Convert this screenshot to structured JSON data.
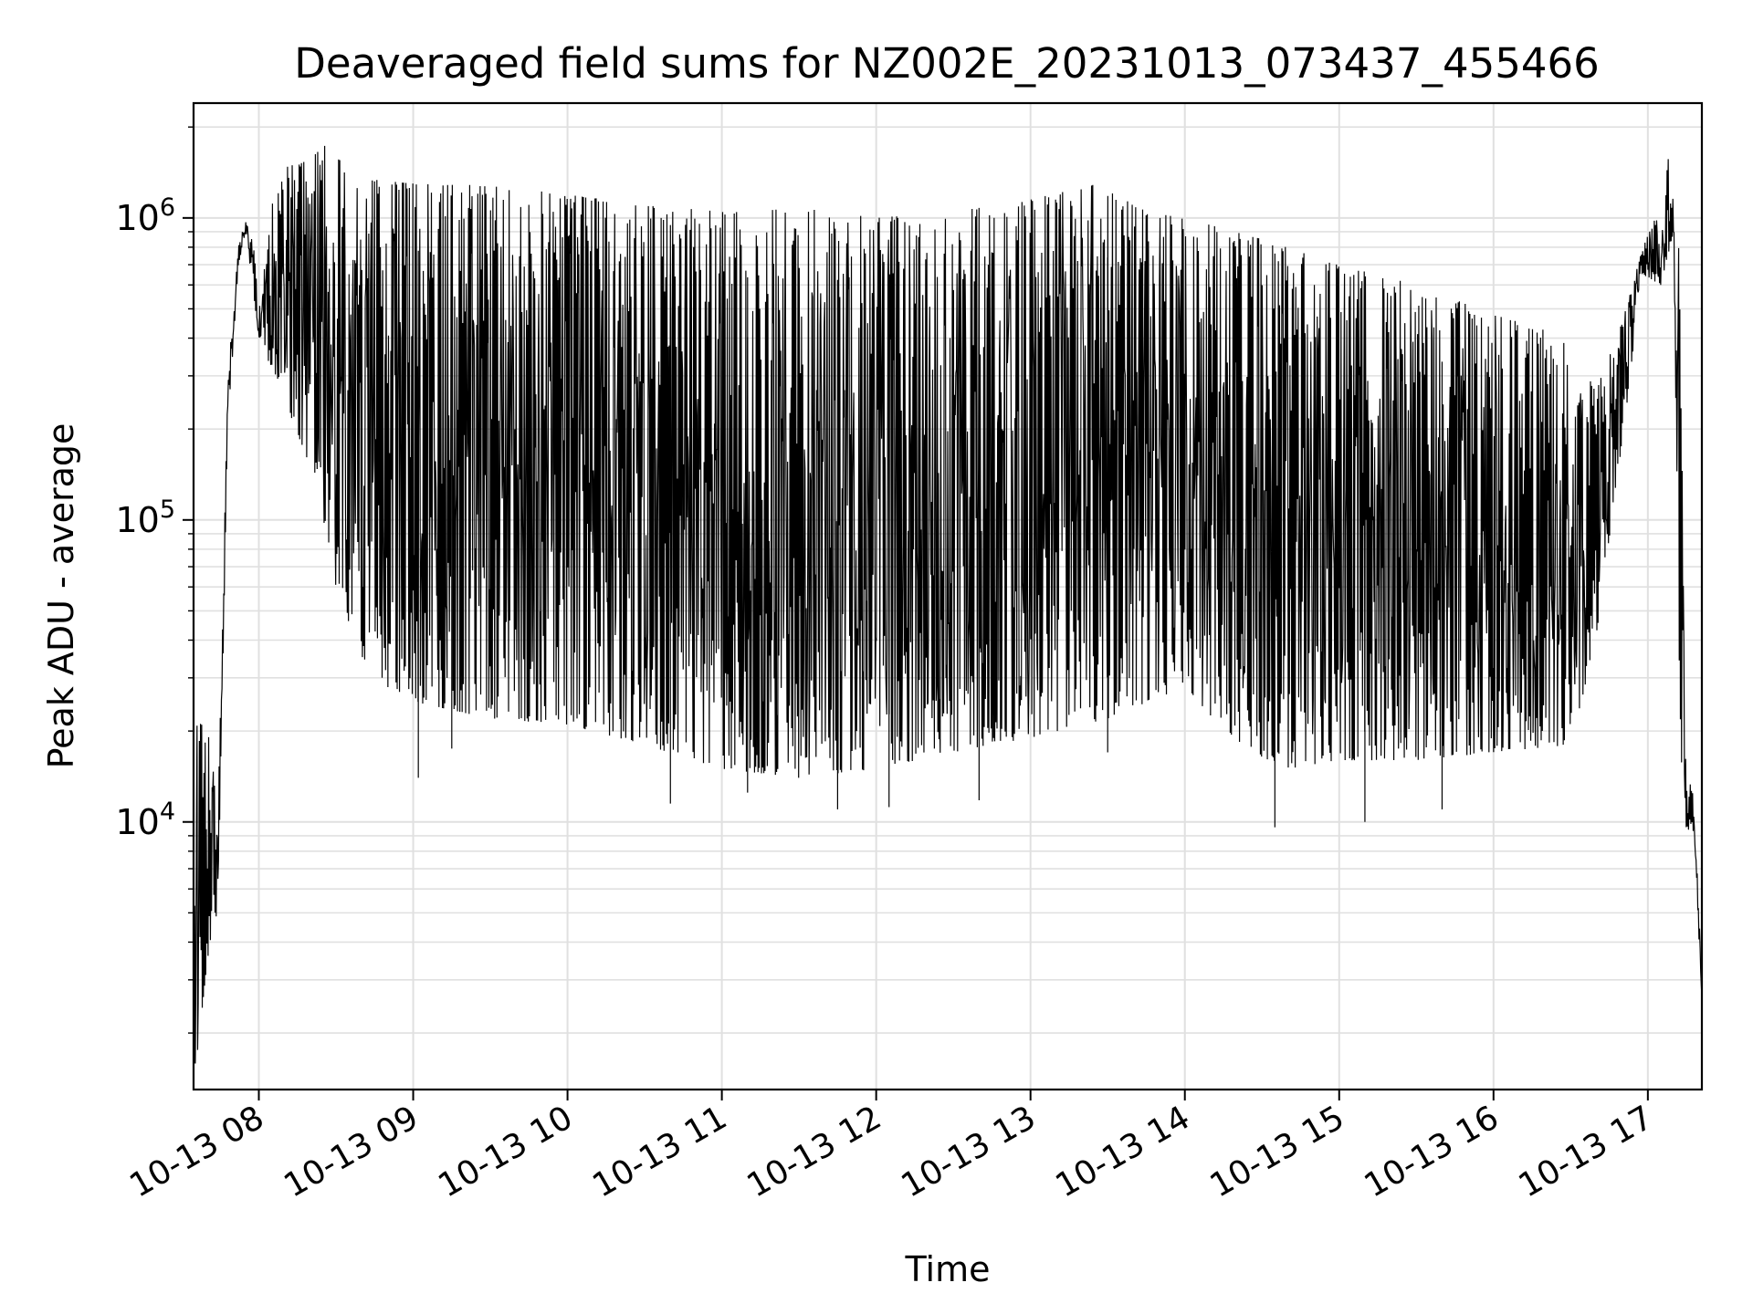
{
  "chart_data": {
    "type": "line",
    "title": "Deaveraged field sums for NZ002E_20231013_073437_455466",
    "xlabel": "Time",
    "ylabel": "Peak ADU - average",
    "yscale": "log",
    "grid": true,
    "line_color": "#000000",
    "grid_color": "#e0e0e0",
    "xlim": [
      "2023-10-13T07:34:37",
      "2023-10-13T17:21:00"
    ],
    "ylim": [
      1300,
      2400000
    ],
    "xticks": [
      {
        "time": "2023-10-13T08:00:00",
        "label": "10-13 08"
      },
      {
        "time": "2023-10-13T09:00:00",
        "label": "10-13 09"
      },
      {
        "time": "2023-10-13T10:00:00",
        "label": "10-13 10"
      },
      {
        "time": "2023-10-13T11:00:00",
        "label": "10-13 11"
      },
      {
        "time": "2023-10-13T12:00:00",
        "label": "10-13 12"
      },
      {
        "time": "2023-10-13T13:00:00",
        "label": "10-13 13"
      },
      {
        "time": "2023-10-13T14:00:00",
        "label": "10-13 14"
      },
      {
        "time": "2023-10-13T15:00:00",
        "label": "10-13 15"
      },
      {
        "time": "2023-10-13T16:00:00",
        "label": "10-13 16"
      },
      {
        "time": "2023-10-13T17:00:00",
        "label": "10-13 17"
      }
    ],
    "yticks": [
      {
        "value": 10000,
        "base": "10",
        "exp": "4"
      },
      {
        "value": 100000,
        "base": "10",
        "exp": "5"
      },
      {
        "value": 1000000,
        "base": "10",
        "exp": "6"
      }
    ],
    "envelope": {
      "upper": [
        [
          "2023-10-13T07:34:37",
          22000
        ],
        [
          "2023-10-13T07:41:00",
          20000
        ],
        [
          "2023-10-13T07:44:00",
          10000
        ],
        [
          "2023-10-13T07:48:00",
          300000
        ],
        [
          "2023-10-13T07:52:00",
          800000
        ],
        [
          "2023-10-13T07:55:00",
          1000000
        ],
        [
          "2023-10-13T07:58:00",
          800000
        ],
        [
          "2023-10-13T08:00:00",
          500000
        ],
        [
          "2023-10-13T08:05:00",
          1100000
        ],
        [
          "2023-10-13T08:10:00",
          1500000
        ],
        [
          "2023-10-13T08:20:00",
          1550000
        ],
        [
          "2023-10-13T08:25:00",
          1750000
        ],
        [
          "2023-10-13T08:40:00",
          1350000
        ],
        [
          "2023-10-13T09:00:00",
          1300000
        ],
        [
          "2023-10-13T09:30:00",
          1280000
        ],
        [
          "2023-10-13T10:00:00",
          1200000
        ],
        [
          "2023-10-13T10:30:00",
          1100000
        ],
        [
          "2023-10-13T11:00:00",
          1050000
        ],
        [
          "2023-10-13T11:30:00",
          1080000
        ],
        [
          "2023-10-13T12:00:00",
          1000000
        ],
        [
          "2023-10-13T12:30:00",
          1050000
        ],
        [
          "2023-10-13T13:00:00",
          1150000
        ],
        [
          "2023-10-13T13:25:00",
          1300000
        ],
        [
          "2023-10-13T13:45:00",
          1050000
        ],
        [
          "2023-10-13T14:00:00",
          1000000
        ],
        [
          "2023-10-13T14:30:00",
          850000
        ],
        [
          "2023-10-13T15:00:00",
          700000
        ],
        [
          "2023-10-13T15:30:00",
          600000
        ],
        [
          "2023-10-13T16:00:00",
          480000
        ],
        [
          "2023-10-13T16:30:00",
          400000
        ],
        [
          "2023-10-13T16:40:00",
          270000
        ],
        [
          "2023-10-13T16:50:00",
          450000
        ],
        [
          "2023-10-13T16:58:00",
          800000
        ],
        [
          "2023-10-13T17:05:00",
          1100000
        ],
        [
          "2023-10-13T17:08:00",
          1650000
        ],
        [
          "2023-10-13T17:12:00",
          900000
        ],
        [
          "2023-10-13T17:15:00",
          15000
        ],
        [
          "2023-10-13T17:18:00",
          12000
        ],
        [
          "2023-10-13T17:21:00",
          3000
        ]
      ],
      "lower": [
        [
          "2023-10-13T07:34:37",
          1300
        ],
        [
          "2023-10-13T07:40:00",
          3500
        ],
        [
          "2023-10-13T07:44:00",
          5000
        ],
        [
          "2023-10-13T07:48:00",
          200000
        ],
        [
          "2023-10-13T07:52:00",
          700000
        ],
        [
          "2023-10-13T07:55:00",
          900000
        ],
        [
          "2023-10-13T08:00:00",
          400000
        ],
        [
          "2023-10-13T08:10:00",
          250000
        ],
        [
          "2023-10-13T08:20:00",
          150000
        ],
        [
          "2023-10-13T08:30:00",
          60000
        ],
        [
          "2023-10-13T08:40:00",
          35000
        ],
        [
          "2023-10-13T08:50:00",
          28000
        ],
        [
          "2023-10-13T09:00:00",
          25000
        ],
        [
          "2023-10-13T09:30:00",
          22000
        ],
        [
          "2023-10-13T10:00:00",
          21000
        ],
        [
          "2023-10-13T10:30:00",
          18000
        ],
        [
          "2023-10-13T11:00:00",
          15000
        ],
        [
          "2023-10-13T11:30:00",
          14000
        ],
        [
          "2023-10-13T12:00:00",
          15000
        ],
        [
          "2023-10-13T12:30:00",
          17000
        ],
        [
          "2023-10-13T13:00:00",
          19000
        ],
        [
          "2023-10-13T13:30:00",
          22000
        ],
        [
          "2023-10-13T14:00:00",
          28000
        ],
        [
          "2023-10-13T14:20:00",
          18000
        ],
        [
          "2023-10-13T14:40:00",
          15000
        ],
        [
          "2023-10-13T15:00:00",
          16000
        ],
        [
          "2023-10-13T15:30:00",
          16000
        ],
        [
          "2023-10-13T16:00:00",
          17000
        ],
        [
          "2023-10-13T16:30:00",
          18000
        ],
        [
          "2023-10-13T16:40:00",
          40000
        ],
        [
          "2023-10-13T16:50:00",
          180000
        ],
        [
          "2023-10-13T16:58:00",
          650000
        ],
        [
          "2023-10-13T17:05:00",
          600000
        ],
        [
          "2023-10-13T17:10:00",
          900000
        ],
        [
          "2023-10-13T17:13:00",
          10000
        ],
        [
          "2023-10-13T17:18:00",
          9000
        ],
        [
          "2023-10-13T17:21:00",
          2500
        ]
      ],
      "spikes_down": [
        [
          "2023-10-13T09:02:00",
          14000
        ],
        [
          "2023-10-13T09:15:00",
          17500
        ],
        [
          "2023-10-13T10:40:00",
          11500
        ],
        [
          "2023-10-13T11:10:00",
          12500
        ],
        [
          "2023-10-13T11:45:00",
          11000
        ],
        [
          "2023-10-13T12:05:00",
          11200
        ],
        [
          "2023-10-13T12:40:00",
          11800
        ],
        [
          "2023-10-13T13:30:00",
          17000
        ],
        [
          "2023-10-13T14:35:00",
          9600
        ],
        [
          "2023-10-13T15:10:00",
          10000
        ],
        [
          "2023-10-13T15:40:00",
          11000
        ]
      ]
    }
  }
}
